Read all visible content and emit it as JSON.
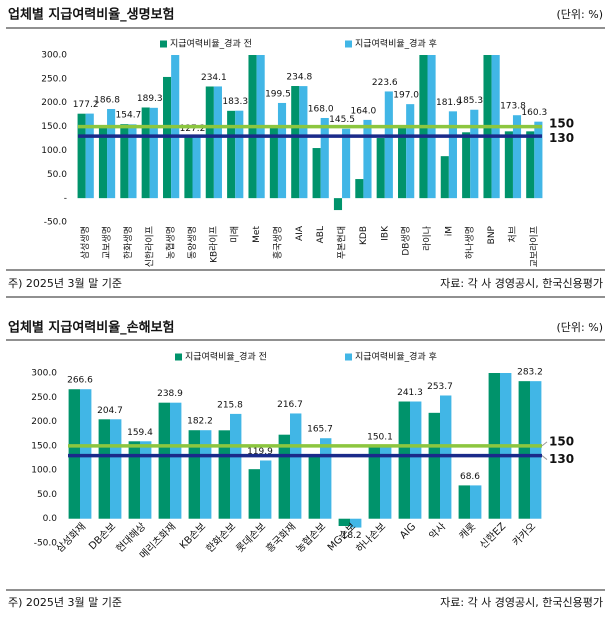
{
  "chart_data": [
    {
      "type": "bar",
      "title": "업체별 지급여력비율_생명보험",
      "unit": "(단위: %)",
      "note": "주) 2025년 3월 말 기준",
      "source": "자료: 각 사 경영공시, 한국신용평가",
      "categories": [
        "삼성생명",
        "교보생명",
        "한화생명",
        "신한라이프",
        "농협생명",
        "동양생명",
        "KB라이프",
        "미래",
        "Met",
        "흥국생명",
        "AIA",
        "ABL",
        "푸본현대",
        "KDB",
        "IBK",
        "DB생명",
        "라이나",
        "iM",
        "하나생명",
        "BNP",
        "처브",
        "교보라이프"
      ],
      "series": [
        {
          "name": "지급여력비율_경과 전",
          "color": "#00936b",
          "values": [
            177,
            150,
            155,
            190,
            254,
            127,
            234,
            183,
            300,
            148,
            235,
            105,
            -25,
            40,
            126,
            150,
            300,
            88,
            138,
            300,
            140,
            140
          ]
        },
        {
          "name": "지급여력비율_경과 후",
          "color": "#41b6e6",
          "values": [
            177.2,
            186.8,
            154.7,
            189.3,
            300,
            127.2,
            234.1,
            183.3,
            300,
            199.5,
            234.8,
            168.0,
            145.5,
            164.0,
            223.6,
            197.0,
            300,
            181.9,
            185.3,
            300,
            173.8,
            160.3
          ],
          "value_labels": [
            "177.2",
            "186.8",
            "154.7",
            "189.3",
            null,
            "127.2",
            "234.1",
            "183.3",
            null,
            "199.5",
            "234.8",
            "168.0",
            "145.5",
            "164.0",
            "223.6",
            "197.0",
            null,
            "181.9",
            "185.3",
            null,
            "173.8",
            "160.3"
          ]
        }
      ],
      "ylim": [
        -50,
        300
      ],
      "yticks": [
        {
          "value": -50,
          "label": "-50.0"
        },
        {
          "value": 0,
          "label": "-"
        },
        {
          "value": 50,
          "label": "50.0"
        },
        {
          "value": 100,
          "label": "100.0"
        },
        {
          "value": 150,
          "label": "150.0"
        },
        {
          "value": 200,
          "label": "200.0"
        },
        {
          "value": 250,
          "label": "250.0"
        },
        {
          "value": 300,
          "label": "300.0"
        }
      ],
      "reference_lines": [
        {
          "value": 150,
          "color": "#8cc63f"
        },
        {
          "value": 130,
          "color": "#1b2a8a"
        }
      ],
      "grid": false
    },
    {
      "type": "bar",
      "title": "업체별 지급여력비율_손해보험",
      "unit": "(단위: %)",
      "note": "주) 2025년 3월 말 기준",
      "source": "자료: 각 사 경영공시, 한국신용평가",
      "categories": [
        "삼성화재",
        "DB손보",
        "현대해상",
        "메리츠화재",
        "KB손보",
        "한화손보",
        "롯데손보",
        "흥국화재",
        "농협손보",
        "MG손보",
        "하나손보",
        "AIG",
        "악사",
        "캐롯",
        "신한EZ",
        "카카오"
      ],
      "series": [
        {
          "name": "지급여력비율_경과 전",
          "color": "#00936b",
          "values": [
            266.6,
            204.7,
            159.4,
            238.9,
            182.2,
            182,
            102,
            173,
            130,
            -15,
            150,
            241.3,
            218,
            68.6,
            300,
            283.2
          ]
        },
        {
          "name": "지급여력비율_경과 후",
          "color": "#41b6e6",
          "values": [
            266.6,
            204.7,
            159.4,
            238.9,
            182.2,
            215.8,
            119.9,
            216.7,
            165.7,
            -18.2,
            150.1,
            241.3,
            253.7,
            68.6,
            300,
            283.2
          ],
          "value_labels": [
            "266.6",
            "204.7",
            "159.4",
            "238.9",
            "182.2",
            "215.8",
            "119.9",
            "216.7",
            "165.7",
            "-18.2",
            "150.1",
            "241.3",
            "253.7",
            "68.6",
            null,
            "283.2"
          ]
        }
      ],
      "ylim": [
        -50,
        300
      ],
      "yticks": [
        {
          "value": -50,
          "label": "-50.0"
        },
        {
          "value": 0,
          "label": "0.0"
        },
        {
          "value": 50,
          "label": "50.0"
        },
        {
          "value": 100,
          "label": "100.0"
        },
        {
          "value": 150,
          "label": "150.0"
        },
        {
          "value": 200,
          "label": "200.0"
        },
        {
          "value": 250,
          "label": "250.0"
        },
        {
          "value": 300,
          "label": "300.0"
        }
      ],
      "reference_lines": [
        {
          "value": 150,
          "color": "#8cc63f"
        },
        {
          "value": 130,
          "color": "#1b2a8a"
        }
      ],
      "grid": false
    }
  ]
}
